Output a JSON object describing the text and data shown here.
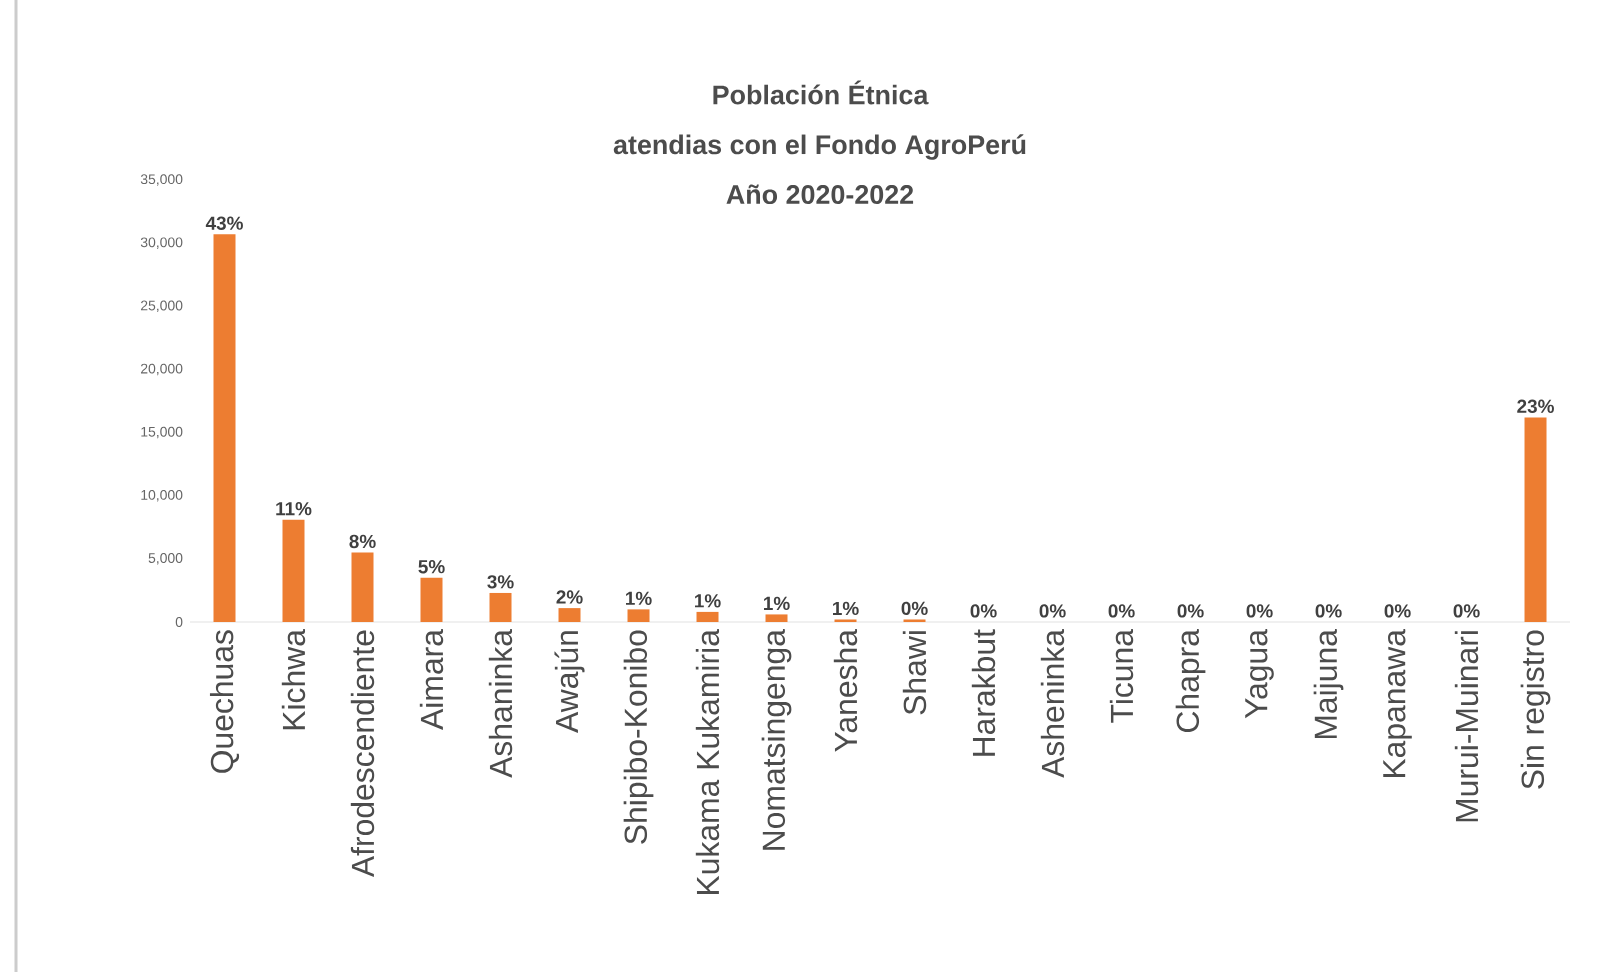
{
  "chart_data": {
    "type": "bar",
    "title": "Población Étnica",
    "subtitle": "atendias con el Fondo AgroPerú Año 2020-2022",
    "categories": [
      "Quechuas",
      "Kichwa",
      "Afrodescendiente",
      "Aimara",
      "Ashaninka",
      "Awajún",
      "Shipibo-Konibo",
      "Kukama Kukamiria",
      "Nomatsingenga",
      "Yanesha",
      "Shawi",
      "Harakbut",
      "Asheninka",
      "Ticuna",
      "Chapra",
      "Yagua",
      "Maijuna",
      "Kapanawa",
      "Murui-Muinari",
      "Sin registro"
    ],
    "values": [
      30700,
      8100,
      5500,
      3500,
      2300,
      1100,
      1000,
      800,
      600,
      200,
      200,
      0,
      0,
      0,
      0,
      0,
      0,
      0,
      0,
      16200
    ],
    "annotations": [
      {
        "text": "43%",
        "x": "Quechuas",
        "y": 30700
      },
      {
        "text": "11%",
        "x": "Kichwa",
        "y": 8100
      },
      {
        "text": "8%",
        "x": "Afrodescendiente",
        "y": 5500
      },
      {
        "text": "5%",
        "x": "Aimara",
        "y": 3500
      },
      {
        "text": "3%",
        "x": "Ashaninka",
        "y": 2300
      },
      {
        "text": "2%",
        "x": "Awajún",
        "y": 1100
      },
      {
        "text": "1%",
        "x": "Shipibo-Konibo",
        "y": 1000
      },
      {
        "text": "1%",
        "x": "Kukama Kukamiria",
        "y": 800
      },
      {
        "text": "1%",
        "x": "Nomatsingenga",
        "y": 600
      },
      {
        "text": "1%",
        "x": "Yanesha",
        "y": 200
      },
      {
        "text": "0%",
        "x": "Shawi",
        "y": 200
      },
      {
        "text": "0%",
        "x": "Harakbut",
        "y": 0
      },
      {
        "text": "0%",
        "x": "Asheninka",
        "y": 0
      },
      {
        "text": "0%",
        "x": "Ticuna",
        "y": 0
      },
      {
        "text": "0%",
        "x": "Chapra",
        "y": 0
      },
      {
        "text": "0%",
        "x": "Yagua",
        "y": 0
      },
      {
        "text": "0%",
        "x": "Maijuna",
        "y": 0
      },
      {
        "text": "0%",
        "x": "Kapanawa",
        "y": 0
      },
      {
        "text": "0%",
        "x": "Murui-Muinari",
        "y": 0
      },
      {
        "text": "23%",
        "x": "Sin registro",
        "y": 16200
      }
    ],
    "color": "#ed7d31",
    "ylim": [
      0,
      35000
    ],
    "yticks": [
      {
        "value": 0,
        "label": "0"
      },
      {
        "value": 5000,
        "label": "5,000"
      },
      {
        "value": 10000,
        "label": "10,000"
      },
      {
        "value": 15000,
        "label": "15,000"
      },
      {
        "value": 20000,
        "label": "20,000"
      },
      {
        "value": 25000,
        "label": "25,000"
      },
      {
        "value": 30000,
        "label": "30,000"
      },
      {
        "value": 35000,
        "label": "35,000"
      }
    ],
    "grid": false
  }
}
